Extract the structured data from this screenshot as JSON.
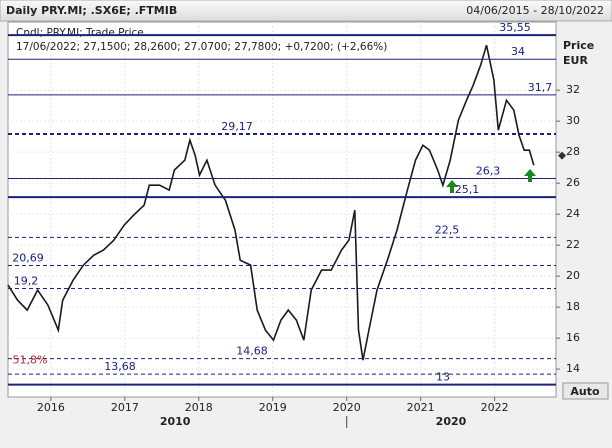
{
  "chart_data": {
    "type": "line",
    "title": "Daily PRY.MI; .SX6E; .FTMIB",
    "date_range": "04/06/2015 - 28/10/2022",
    "legend_lines": [
      "Cndl; PRY.MI; Trade Price",
      "17/06/2022; 27,1500; 28,2600; 27,0700; 27,7800; +0,7200; (+2,66%)"
    ],
    "y_axis_label": [
      "Price",
      "EUR"
    ],
    "button": "Auto",
    "annotation": "51,8%",
    "series": [
      {
        "name": "PRY.MI",
        "color": "#1a1a1a",
        "x": [
          2015.42,
          2015.55,
          2015.68,
          2015.82,
          2015.96,
          2016.1,
          2016.16,
          2016.3,
          2016.44,
          2016.58,
          2016.71,
          2016.85,
          2016.99,
          2017.12,
          2017.26,
          2017.33,
          2017.47,
          2017.6,
          2017.67,
          2017.81,
          2017.88,
          2017.95,
          2018.01,
          2018.11,
          2018.22,
          2018.36,
          2018.49,
          2018.56,
          2018.7,
          2018.79,
          2018.9,
          2019.01,
          2019.11,
          2019.21,
          2019.32,
          2019.42,
          2019.52,
          2019.66,
          2019.79,
          2019.93,
          2020.03,
          2020.11,
          2020.16,
          2020.22,
          2020.3,
          2020.41,
          2020.55,
          2020.68,
          2020.82,
          2020.93,
          2021.03,
          2021.12,
          2021.23,
          2021.3,
          2021.4,
          2021.51,
          2021.62,
          2021.71,
          2021.81,
          2021.89,
          2021.99,
          2022.05,
          2022.16,
          2022.26,
          2022.33,
          2022.4,
          2022.47,
          2022.53
        ],
        "values": [
          19.42,
          18.45,
          17.81,
          19.1,
          18.13,
          16.52,
          18.45,
          19.74,
          20.71,
          21.35,
          21.68,
          22.32,
          23.29,
          23.94,
          24.58,
          25.87,
          25.87,
          25.55,
          26.84,
          27.48,
          28.77,
          27.81,
          26.52,
          27.48,
          25.87,
          24.9,
          22.97,
          21.03,
          20.71,
          17.81,
          16.52,
          15.87,
          17.16,
          17.81,
          17.16,
          15.87,
          19.1,
          20.39,
          20.39,
          21.68,
          22.32,
          24.26,
          16.52,
          14.58,
          16.52,
          19.1,
          21.03,
          22.97,
          25.55,
          27.48,
          28.45,
          28.13,
          26.84,
          25.87,
          27.48,
          30.06,
          31.35,
          32.32,
          33.61,
          34.9,
          32.65,
          29.42,
          31.35,
          30.71,
          29.1,
          28.13,
          28.13,
          27.16
        ]
      }
    ],
    "levels": [
      {
        "value": 35.55,
        "label": "35,55",
        "style": "solid"
      },
      {
        "value": 34,
        "label": "34",
        "style": "solid"
      },
      {
        "value": 31.7,
        "label": "31,7",
        "style": "solid"
      },
      {
        "value": 29.17,
        "label": "29,17",
        "style": "dashed"
      },
      {
        "value": 26.3,
        "label": "26,3",
        "style": "solid"
      },
      {
        "value": 25.1,
        "label": "25,1",
        "style": "solid"
      },
      {
        "value": 22.5,
        "label": "22,5",
        "style": "dashed"
      },
      {
        "value": 20.69,
        "label": "20,69",
        "style": "dashed"
      },
      {
        "value": 19.2,
        "label": "19,2",
        "style": "dashed"
      },
      {
        "value": 14.68,
        "label": "14,68",
        "style": "dashed"
      },
      {
        "value": 13.68,
        "label": "13,68",
        "style": "dashed"
      },
      {
        "value": 13,
        "label": "13",
        "style": "solid"
      }
    ],
    "last_price": 27.78,
    "xlim": [
      2015.42,
      2022.83
    ],
    "xticks": [
      {
        "value": 2016,
        "label": "2016"
      },
      {
        "value": 2017,
        "label": "2017"
      },
      {
        "value": 2018,
        "label": "2018"
      },
      {
        "value": 2019,
        "label": "2019"
      },
      {
        "value": 2020,
        "label": "2020"
      },
      {
        "value": 2021,
        "label": "2021"
      },
      {
        "value": 2022,
        "label": "2022"
      }
    ],
    "x2ticks": [
      {
        "value": 2017.68,
        "label": "2010"
      },
      {
        "value": 2021.41,
        "label": "2020"
      }
    ],
    "ylim": [
      12.2,
      36.4
    ],
    "yticks": [
      14,
      16,
      18,
      20,
      22,
      24,
      26,
      28,
      30,
      32
    ],
    "grid": true
  }
}
